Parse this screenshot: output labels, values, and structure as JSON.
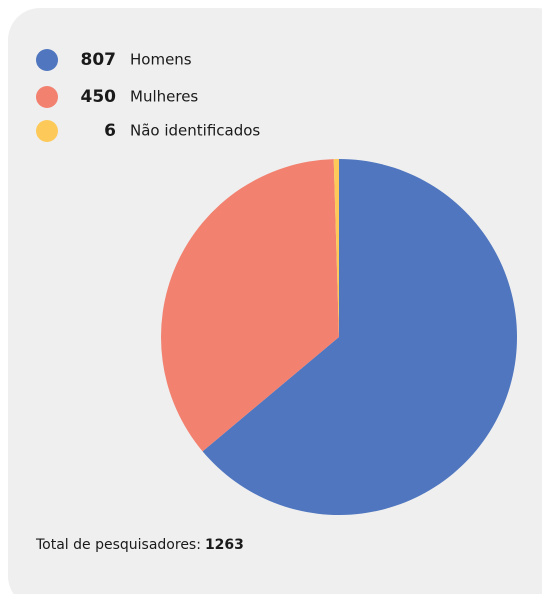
{
  "chart_data": {
    "type": "pie",
    "categories": [
      "Homens",
      "Mulheres",
      "Não identificados"
    ],
    "values": [
      807,
      450,
      6
    ],
    "colors": [
      "#4f76bf",
      "#f28170",
      "#fdca5a"
    ],
    "total_label": "Total de pesquisadores:",
    "total": 1263
  }
}
